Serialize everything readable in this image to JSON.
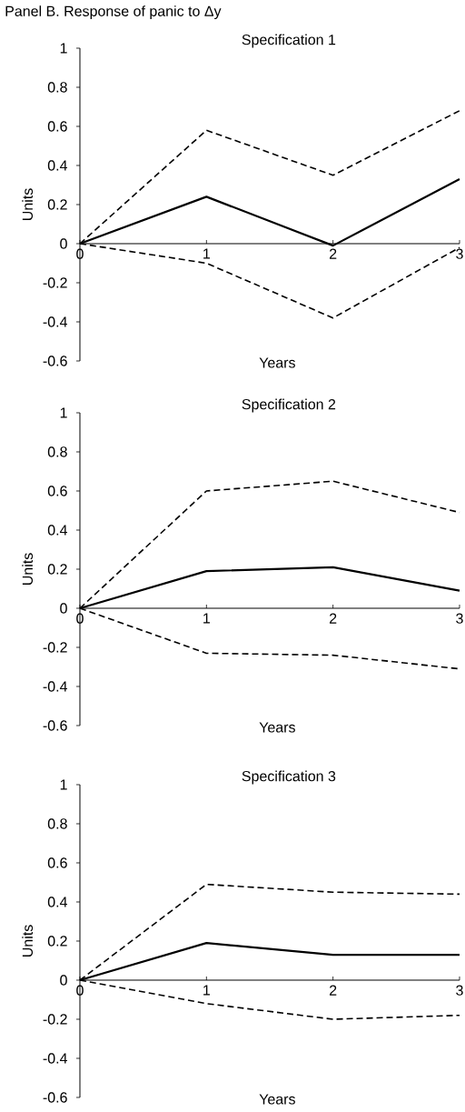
{
  "chart_data": [
    {
      "type": "line",
      "title": "Specification 1",
      "xlabel": "Years",
      "ylabel": "Units",
      "annotations": [
        "Panel B. Response of panic to Δy"
      ],
      "x": [
        0,
        1,
        2,
        3
      ],
      "xlim": [
        0,
        3
      ],
      "xticks": [
        0,
        1,
        2,
        3
      ],
      "ylim": [
        -0.6,
        1
      ],
      "yticks": [
        -0.6,
        -0.4,
        -0.2,
        0,
        0.2,
        0.4,
        0.6,
        0.8,
        1
      ],
      "series": [
        {
          "color": "#000000",
          "line_style": "dashed",
          "values": [
            0,
            0.58,
            0.35,
            0.68
          ]
        },
        {
          "color": "#000000",
          "line_style": "solid",
          "values": [
            0,
            0.24,
            -0.01,
            0.33
          ]
        },
        {
          "color": "#000000",
          "line_style": "dashed",
          "values": [
            0,
            -0.1,
            -0.38,
            -0.02
          ]
        }
      ]
    },
    {
      "type": "line",
      "title": "Specification 2",
      "xlabel": "Years",
      "ylabel": "Units",
      "x": [
        0,
        1,
        2,
        3
      ],
      "xlim": [
        0,
        3
      ],
      "xticks": [
        0,
        1,
        2,
        3
      ],
      "ylim": [
        -0.6,
        1
      ],
      "yticks": [
        -0.6,
        -0.4,
        -0.2,
        0,
        0.2,
        0.4,
        0.6,
        0.8,
        1
      ],
      "series": [
        {
          "color": "#000000",
          "line_style": "dashed",
          "values": [
            0,
            0.6,
            0.65,
            0.49
          ]
        },
        {
          "color": "#000000",
          "line_style": "solid",
          "values": [
            0,
            0.19,
            0.21,
            0.09
          ]
        },
        {
          "color": "#000000",
          "line_style": "dashed",
          "values": [
            0,
            -0.23,
            -0.24,
            -0.31
          ]
        }
      ]
    },
    {
      "type": "line",
      "title": "Specification 3",
      "xlabel": "Years",
      "ylabel": "Units",
      "x": [
        0,
        1,
        2,
        3
      ],
      "xlim": [
        0,
        3
      ],
      "xticks": [
        0,
        1,
        2,
        3
      ],
      "ylim": [
        -0.6,
        1
      ],
      "yticks": [
        -0.6,
        -0.4,
        -0.2,
        0,
        0.2,
        0.4,
        0.6,
        0.8,
        1
      ],
      "series": [
        {
          "color": "#000000",
          "line_style": "dashed",
          "values": [
            0,
            0.49,
            0.45,
            0.44
          ]
        },
        {
          "color": "#000000",
          "line_style": "solid",
          "values": [
            0,
            0.19,
            0.13,
            0.13
          ]
        },
        {
          "color": "#000000",
          "line_style": "dashed",
          "values": [
            0,
            -0.12,
            -0.2,
            -0.18
          ]
        }
      ]
    }
  ]
}
